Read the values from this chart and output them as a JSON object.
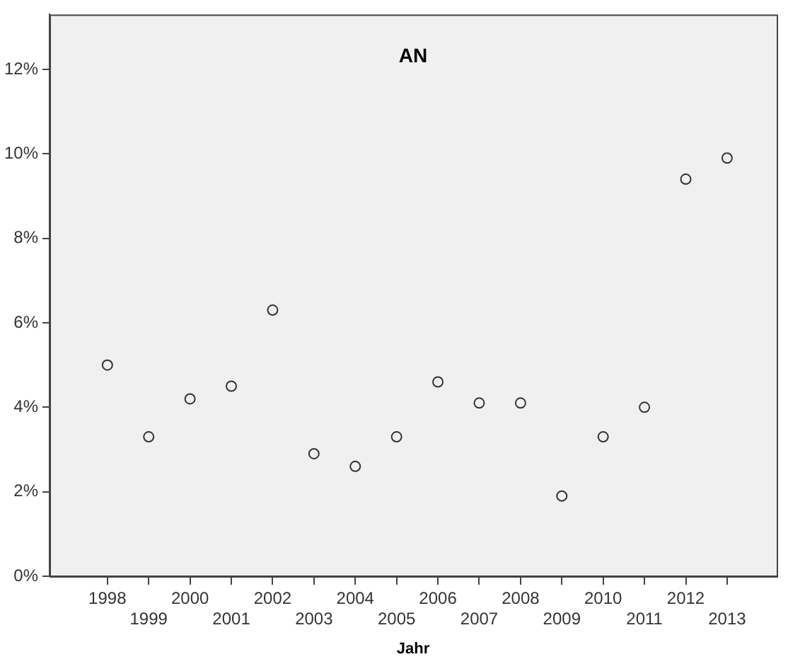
{
  "chart_data": {
    "type": "scatter",
    "title": "AN",
    "xlabel": "Jahr",
    "categories": [
      "1998",
      "1999",
      "2000",
      "2001",
      "2002",
      "2003",
      "2004",
      "2005",
      "2006",
      "2007",
      "2008",
      "2009",
      "2010",
      "2011",
      "2012",
      "2013"
    ],
    "series": [
      {
        "color": "#333333",
        "values": [
          5.0,
          3.3,
          4.2,
          4.5,
          6.3,
          2.9,
          2.6,
          3.3,
          4.6,
          4.1,
          4.1,
          1.9,
          3.3,
          4.0,
          9.4,
          9.9
        ]
      }
    ],
    "ylim": [
      0,
      13.3
    ],
    "yticks": [
      {
        "value": 0,
        "label": "0%"
      },
      {
        "value": 2,
        "label": "2%"
      },
      {
        "value": 4,
        "label": "4%"
      },
      {
        "value": 6,
        "label": "6%"
      },
      {
        "value": 8,
        "label": "8%"
      },
      {
        "value": 10,
        "label": "10%"
      },
      {
        "value": 12,
        "label": "12%"
      }
    ],
    "grid": false,
    "legend": false,
    "marker": "circle"
  }
}
